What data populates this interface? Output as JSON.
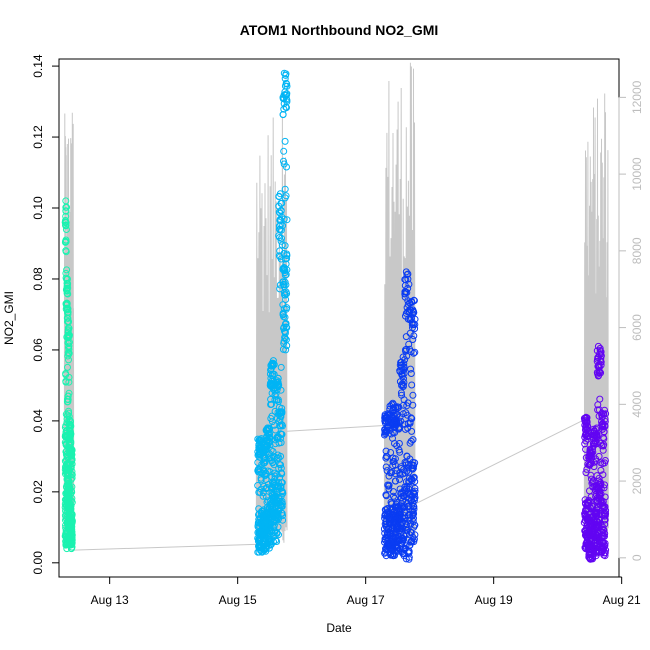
{
  "chart_data": {
    "type": "scatter",
    "title": "ATOM1 Northbound NO2_GMI",
    "xlabel": "Date",
    "ylabel": "NO2_GMI",
    "xlim": [
      "2021-08-12T05:00",
      "2021-08-20T23:00"
    ],
    "ylim": [
      -0.004,
      0.142
    ],
    "x_ticks": [
      {
        "date": "2021-08-13",
        "label": "Aug 13"
      },
      {
        "date": "2021-08-15",
        "label": "Aug 15"
      },
      {
        "date": "2021-08-17",
        "label": "Aug 17"
      },
      {
        "date": "2021-08-19",
        "label": "Aug 19"
      },
      {
        "date": "2021-08-21",
        "label": "Aug 21"
      }
    ],
    "y_ticks": [
      "0.00",
      "0.02",
      "0.04",
      "0.06",
      "0.08",
      "0.10",
      "0.12",
      "0.14"
    ],
    "y2_ticks": [
      "0",
      "2000",
      "4000",
      "6000",
      "8000",
      "10000",
      "12000"
    ],
    "y2lim": [
      -500,
      13000
    ],
    "grid": false,
    "series": [
      {
        "color": "#1bf2b0",
        "start": "2021-08-12T07:20",
        "end": "2021-08-12T10:00",
        "segments": [
          [
            0.005,
            0.102
          ],
          [
            0.004,
            0.08
          ],
          [
            0.006,
            0.068
          ],
          [
            0.005,
            0.04
          ],
          [
            0.004,
            0.032
          ]
        ]
      },
      {
        "color": "#00b4f4",
        "start": "2021-08-15T07:30",
        "end": "2021-08-15T18:30",
        "segments": [
          [
            0.003,
            0.035
          ],
          [
            0.003,
            0.032
          ],
          [
            0.004,
            0.038
          ],
          [
            0.005,
            0.057
          ],
          [
            0.006,
            0.052
          ],
          [
            0.012,
            0.104
          ],
          [
            0.06,
            0.138
          ]
        ]
      },
      {
        "color": "#0a3cf2",
        "start": "2021-08-17T07:00",
        "end": "2021-08-17T18:30",
        "segments": [
          [
            0.002,
            0.042
          ],
          [
            0.002,
            0.045
          ],
          [
            0.003,
            0.044
          ],
          [
            0.002,
            0.058
          ],
          [
            0.001,
            0.082
          ],
          [
            0.005,
            0.074
          ]
        ]
      },
      {
        "color": "#6205f2",
        "start": "2021-08-20T10:00",
        "end": "2021-08-20T18:00",
        "segments": [
          [
            0.004,
            0.041
          ],
          [
            0.001,
            0.032
          ],
          [
            0.002,
            0.038
          ],
          [
            0.003,
            0.061
          ],
          [
            0.002,
            0.043
          ]
        ]
      }
    ],
    "secondary_line": {
      "color": "#c8c8c8",
      "description_axis": "right",
      "flights": [
        {
          "start": "2021-08-12T07:00",
          "end": "2021-08-12T10:30",
          "peak": 11600
        },
        {
          "start": "2021-08-15T07:00",
          "end": "2021-08-15T18:30",
          "peak": 11500
        },
        {
          "start": "2021-08-17T07:00",
          "end": "2021-08-17T18:30",
          "peak": 12900
        },
        {
          "start": "2021-08-20T10:00",
          "end": "2021-08-20T19:00",
          "peak": 12100
        }
      ],
      "connectors": [
        [
          [
            "2021-08-12T10:30",
            200
          ],
          [
            "2021-08-15T07:00",
            350
          ]
        ],
        [
          [
            "2021-08-15T18:30",
            3300
          ],
          [
            "2021-08-17T07:00",
            3450
          ]
        ],
        [
          [
            "2021-08-17T18:30",
            1400
          ],
          [
            "2021-08-20T10:00",
            3600
          ]
        ]
      ]
    }
  }
}
